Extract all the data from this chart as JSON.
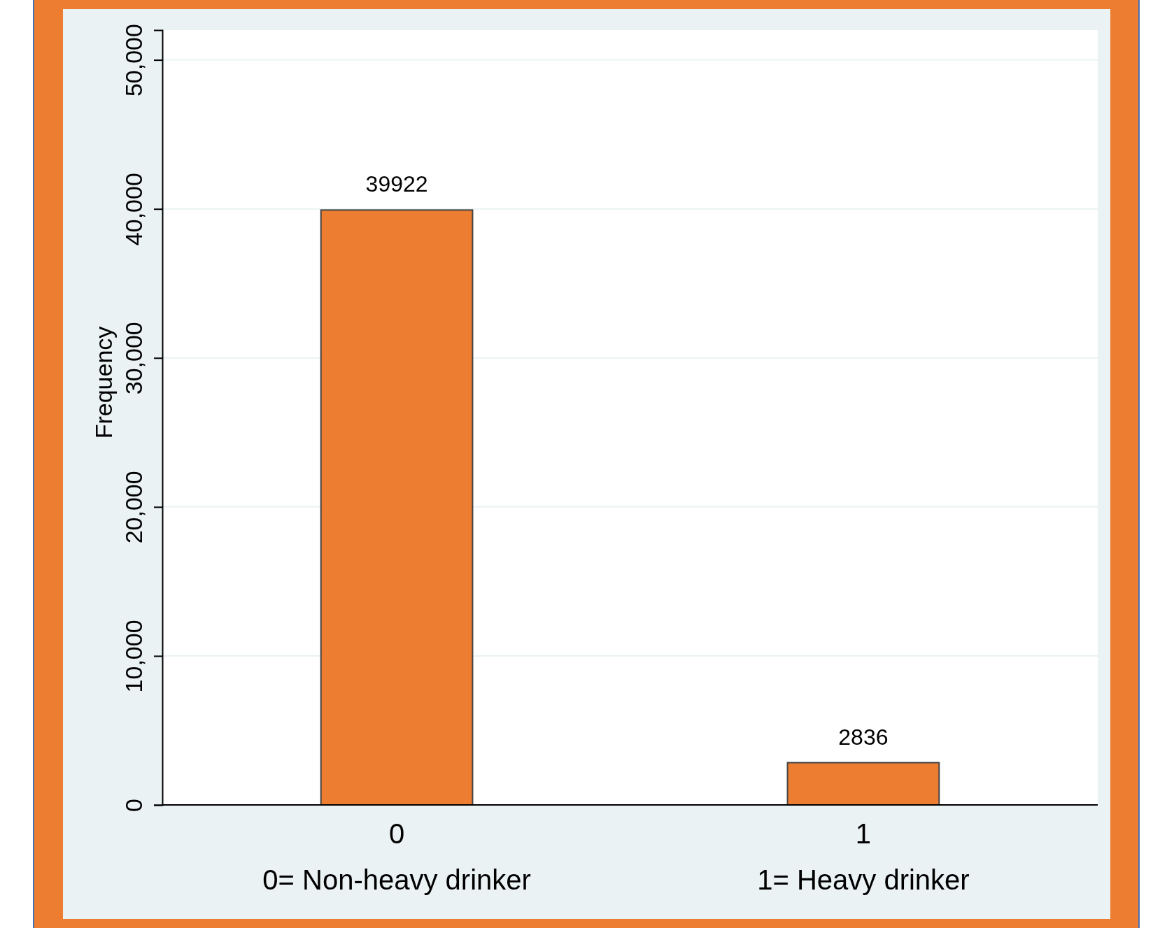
{
  "chart_data": {
    "type": "bar",
    "ylabel": "Frequency",
    "categories": [
      "0",
      "1"
    ],
    "values": [
      39922,
      2836
    ],
    "color": "#ed7d31",
    "ylim": [
      0,
      52000
    ],
    "yticks": [
      {
        "value": 0,
        "label": "0"
      },
      {
        "value": 10000,
        "label": "10,000"
      },
      {
        "value": 20000,
        "label": "20,000"
      },
      {
        "value": 30000,
        "label": "30,000"
      },
      {
        "value": 40000,
        "label": "40,000"
      },
      {
        "value": 50000,
        "label": "50,000"
      }
    ],
    "grid": "y",
    "data_labels": true,
    "annotations": [
      "0= Non-heavy drinker",
      "1= Heavy drinker"
    ]
  }
}
